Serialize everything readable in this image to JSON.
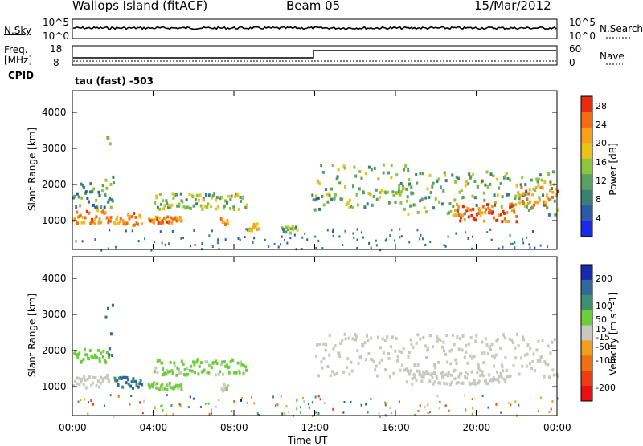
{
  "header": {
    "station": "Wallops Island (fitACF)",
    "beam": "Beam 05",
    "date": "15/Mar/2012"
  },
  "top_panels": {
    "nsky_label": "N.Sky",
    "nsky_ticks": [
      "10^5",
      "10^0"
    ],
    "nsearch_label": "N.Search",
    "nsearch_ticks": [
      "10^5",
      "10^0"
    ],
    "freq_label": "Freq.",
    "freq_unit": "[MHz]",
    "freq_ticks": [
      "18",
      "8"
    ],
    "nave_label": "Nave",
    "nave_ticks": [
      "60",
      "0"
    ],
    "cpid_label": "CPID",
    "cpid_value": "tau (fast) -503"
  },
  "chart_data": [
    {
      "type": "heatmap",
      "name": "power",
      "ylabel": "Slant Range [km]",
      "xlabel": "Time UT",
      "x_ticks": [
        "00:00",
        "04:00",
        "08:00",
        "12:00",
        "16:00",
        "20:00",
        "00:00"
      ],
      "x_range_hours": [
        0,
        24
      ],
      "y_ticks": [
        1000,
        2000,
        3000,
        4000
      ],
      "y_range_km": [
        200,
        4600
      ],
      "colorbar": {
        "label": "Power [dB]",
        "ticks": [
          4,
          8,
          12,
          16,
          20,
          24,
          28
        ],
        "range": [
          0,
          30
        ],
        "colors": [
          "#1a2ae8",
          "#2a5aa8",
          "#3a7f78",
          "#5aa060",
          "#8cc63c",
          "#e8c41a",
          "#f7a21a",
          "#f56a14",
          "#e82a10"
        ]
      },
      "features": [
        {
          "t0": 0.0,
          "t1": 1.9,
          "r0": 950,
          "r1": 1350,
          "level": 24
        },
        {
          "t0": 0.0,
          "t1": 2.0,
          "r0": 1400,
          "r1": 2100,
          "level": 10
        },
        {
          "t0": 1.6,
          "t1": 2.0,
          "r0": 1300,
          "r1": 3800,
          "level": 12
        },
        {
          "t0": 2.0,
          "t1": 3.4,
          "r0": 900,
          "r1": 1250,
          "level": 22
        },
        {
          "t0": 3.7,
          "t1": 5.4,
          "r0": 950,
          "r1": 1150,
          "level": 24
        },
        {
          "t0": 4.0,
          "t1": 8.6,
          "r0": 1350,
          "r1": 1800,
          "level": 14
        },
        {
          "t0": 7.3,
          "t1": 7.7,
          "r0": 900,
          "r1": 1100,
          "level": 22
        },
        {
          "t0": 8.6,
          "t1": 9.2,
          "r0": 750,
          "r1": 950,
          "level": 20
        },
        {
          "t0": 10.3,
          "t1": 11.1,
          "r0": 700,
          "r1": 900,
          "level": 14
        },
        {
          "t0": 11.8,
          "t1": 12.2,
          "r0": 1300,
          "r1": 1800,
          "level": 10
        },
        {
          "t0": 12.0,
          "t1": 16.8,
          "r0": 1400,
          "r1": 2600,
          "level": 14
        },
        {
          "t0": 16.0,
          "t1": 24.0,
          "r0": 1200,
          "r1": 2400,
          "level": 13
        },
        {
          "t0": 18.8,
          "t1": 22.0,
          "r0": 1000,
          "r1": 1500,
          "level": 25
        },
        {
          "t0": 22.0,
          "t1": 24.0,
          "r0": 1400,
          "r1": 2100,
          "level": 22
        }
      ]
    },
    {
      "type": "heatmap",
      "name": "velocity",
      "ylabel": "Slant Range [km]",
      "xlabel": "Time UT",
      "x_ticks": [
        "00:00",
        "04:00",
        "08:00",
        "12:00",
        "16:00",
        "20:00",
        "00:00"
      ],
      "x_range_hours": [
        0,
        24
      ],
      "y_ticks": [
        1000,
        2000,
        3000,
        4000
      ],
      "y_range_km": [
        200,
        4600
      ],
      "colorbar": {
        "label": "Velocity [m s^-1]",
        "ticks": [
          200,
          100,
          50,
          15,
          -15,
          -50,
          -100,
          -200
        ],
        "range": [
          -250,
          250
        ],
        "colors": [
          "#1a2ab0",
          "#2f6a9a",
          "#3f8f72",
          "#6ccf3a",
          "#c8c8c0",
          "#f0a020",
          "#f07010",
          "#e84010",
          "#e81010"
        ]
      },
      "features": [
        {
          "t0": 0.0,
          "t1": 1.8,
          "r0": 1700,
          "r1": 2100,
          "level": 60
        },
        {
          "t0": 0.0,
          "t1": 1.8,
          "r0": 1000,
          "r1": 1400,
          "level": 0
        },
        {
          "t0": 1.6,
          "t1": 2.0,
          "r0": 1400,
          "r1": 3500,
          "level": 180
        },
        {
          "t0": 2.0,
          "t1": 3.4,
          "r0": 1000,
          "r1": 1300,
          "level": 150
        },
        {
          "t0": 3.7,
          "t1": 5.4,
          "r0": 950,
          "r1": 1150,
          "level": 40
        },
        {
          "t0": 4.0,
          "t1": 8.6,
          "r0": 1350,
          "r1": 1800,
          "level": 40
        },
        {
          "t0": 7.3,
          "t1": 7.7,
          "r0": 900,
          "r1": 1100,
          "level": 30
        },
        {
          "t0": 12.0,
          "t1": 24.0,
          "r0": 1300,
          "r1": 2500,
          "level": 0
        },
        {
          "t0": 16.5,
          "t1": 21.5,
          "r0": 1100,
          "r1": 1500,
          "level": 0
        }
      ]
    }
  ]
}
